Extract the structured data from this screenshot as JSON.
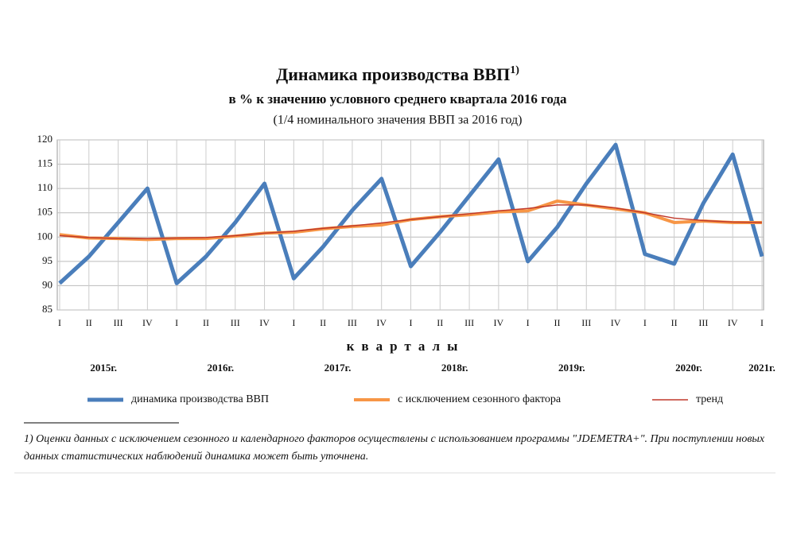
{
  "chart_data": {
    "type": "line",
    "title": "Динамика производства ВВП",
    "title_note": "1)",
    "subtitle": "в % к значению  условного  среднего квартала  2016 года",
    "subtitle2": "(1/4  номинального значения ВВП  за 2016  год)",
    "x_label": "кварталы",
    "categories": [
      "I",
      "II",
      "III",
      "IV",
      "I",
      "II",
      "III",
      "IV",
      "I",
      "II",
      "III",
      "IV",
      "I",
      "II",
      "III",
      "IV",
      "I",
      "II",
      "III",
      "IV",
      "I",
      "II",
      "III",
      "IV",
      "I"
    ],
    "years": [
      "2015г.",
      "2016г.",
      "2017г.",
      "2018г.",
      "2019г.",
      "2020г.",
      "2021г."
    ],
    "ylim": [
      85,
      120
    ],
    "yticks": [
      85,
      90,
      95,
      100,
      105,
      110,
      115,
      120
    ],
    "grid": true,
    "legend": "bottom",
    "series": [
      {
        "name": "динамика производства ВВП",
        "color": "#4a7ebb",
        "values": [
          90.5,
          96,
          103,
          110,
          90.5,
          96,
          103,
          111,
          91.5,
          98,
          105.5,
          112,
          94,
          101,
          108.5,
          116,
          95,
          102,
          111,
          119,
          96.5,
          94.5,
          107,
          117,
          96
        ]
      },
      {
        "name": "с исключением сезонного фактора",
        "color": "#f79646",
        "values": [
          100.5,
          99.8,
          99.7,
          99.5,
          99.7,
          99.7,
          100.2,
          100.8,
          101.0,
          101.7,
          102.2,
          102.5,
          103.6,
          104.2,
          104.6,
          105.2,
          105.4,
          107.4,
          106.6,
          105.8,
          105.0,
          103.0,
          103.3,
          103.0,
          103.0
        ]
      },
      {
        "name": "тренд",
        "color": "#c0392b",
        "values": [
          100.3,
          99.9,
          99.7,
          99.7,
          99.8,
          99.9,
          100.3,
          100.8,
          101.2,
          101.8,
          102.3,
          102.9,
          103.6,
          104.2,
          104.8,
          105.4,
          105.9,
          106.6,
          106.6,
          106.0,
          105.0,
          103.9,
          103.4,
          103.1,
          103.0
        ]
      }
    ],
    "footnote": "1) Оценки  данных  с  исключением сезонного и календарного факторов осуществлены с использованием   программы \"JDEMETRA+\".  При поступлении новых данных статистических наблюдений динамика может быть уточнена."
  }
}
